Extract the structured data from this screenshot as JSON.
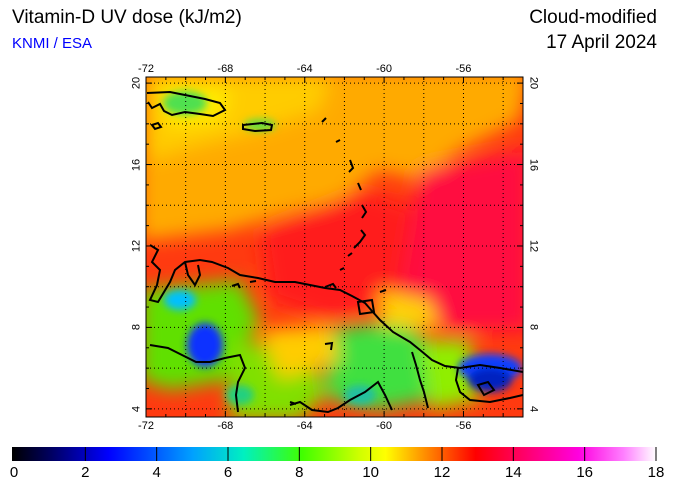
{
  "header": {
    "title": "Vitamin-D UV dose (kJ/m2)",
    "organization": "KNMI / ESA",
    "product": "Cloud-modified",
    "date": "17 April 2024"
  },
  "colors": {
    "organization_text": "#0000ff",
    "colorbar": [
      "#000000",
      "#000080",
      "#0000ff",
      "#00bfff",
      "#00ff80",
      "#80ff00",
      "#ffff00",
      "#ff8000",
      "#ff0000",
      "#ff0080",
      "#ff00ff",
      "#ffffff"
    ]
  },
  "map": {
    "region": "Caribbean",
    "lon_range": [
      -72,
      -53
    ],
    "lat_range": [
      3.6,
      20.3
    ],
    "lon_ticks": [
      {
        "value": -72,
        "label": "-72"
      },
      {
        "value": -68,
        "label": "-68"
      },
      {
        "value": -64,
        "label": "-64"
      },
      {
        "value": -60,
        "label": "-60"
      },
      {
        "value": -56,
        "label": "-56"
      }
    ],
    "lat_ticks": [
      {
        "value": 4,
        "label": "4"
      },
      {
        "value": 8,
        "label": "8"
      },
      {
        "value": 12,
        "label": "12"
      },
      {
        "value": 16,
        "label": "16"
      },
      {
        "value": 20,
        "label": "20"
      }
    ],
    "grid": "dotted",
    "coastlines": true
  },
  "colorbar": {
    "min": 0,
    "max": 18,
    "labels": [
      "0",
      "2",
      "4",
      "6",
      "8",
      "10",
      "12",
      "14",
      "16",
      "18"
    ]
  }
}
